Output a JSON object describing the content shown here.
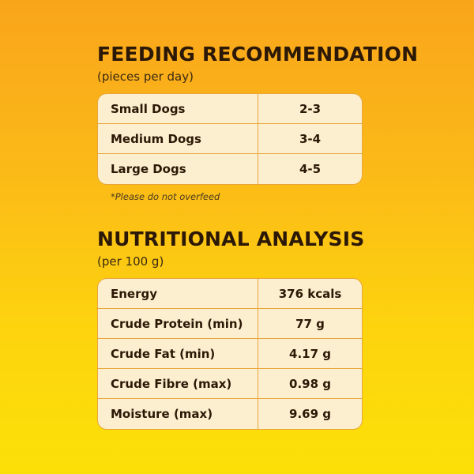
{
  "feeding": {
    "title": "FEEDING RECOMMENDATION",
    "subtitle": "(pieces per day)",
    "rows": [
      {
        "label": "Small Dogs",
        "value": "2-3"
      },
      {
        "label": "Medium Dogs",
        "value": "3-4"
      },
      {
        "label": "Large Dogs",
        "value": "4-5"
      }
    ],
    "note": "*Please do not overfeed"
  },
  "nutrition": {
    "title": "NUTRITIONAL ANALYSIS",
    "subtitle": "(per 100 g)",
    "rows": [
      {
        "label": "Energy",
        "value": "376 kcals"
      },
      {
        "label": "Crude Protein (min)",
        "value": "77 g"
      },
      {
        "label": "Crude Fat (min)",
        "value": "4.17 g"
      },
      {
        "label": "Crude Fibre (max)",
        "value": "0.98 g"
      },
      {
        "label": "Moisture (max)",
        "value": "9.69 g"
      }
    ]
  },
  "colors": {
    "background_top": "#f9a51b",
    "background_bottom": "#fbe007",
    "table_fill": "#fcefcf",
    "table_border": "#e8a63a",
    "text": "#2b1806"
  }
}
